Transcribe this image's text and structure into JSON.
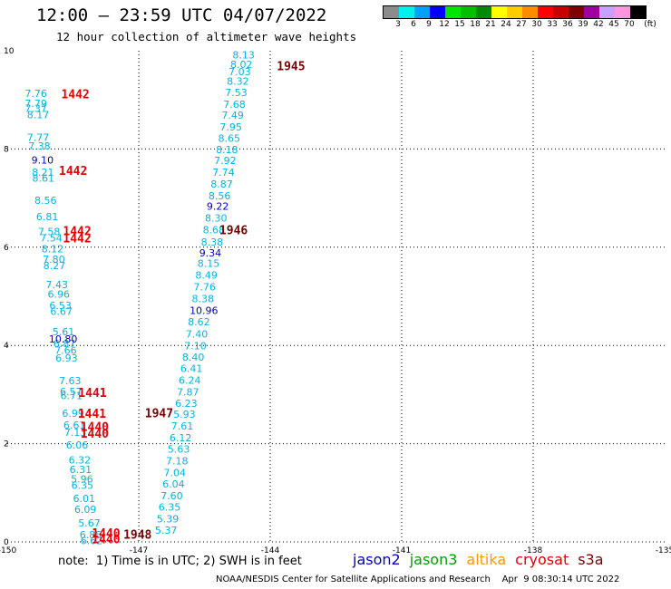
{
  "header": {
    "title": "12:00 – 23:59 UTC 04/07/2022",
    "subtitle": "12 hour collection of altimeter wave heights"
  },
  "legend": {
    "unit": "(ft)",
    "swatches": [
      {
        "color": "#8c8c8c",
        "label": "3"
      },
      {
        "color": "#00f0f0",
        "label": "6"
      },
      {
        "color": "#00a0ff",
        "label": "9"
      },
      {
        "color": "#0000ff",
        "label": "12"
      },
      {
        "color": "#00e600",
        "label": "15"
      },
      {
        "color": "#00c000",
        "label": "18"
      },
      {
        "color": "#008c00",
        "label": "21"
      },
      {
        "color": "#ffff00",
        "label": "24"
      },
      {
        "color": "#ffcc00",
        "label": "27"
      },
      {
        "color": "#ff8c00",
        "label": "30"
      },
      {
        "color": "#ff0000",
        "label": "33"
      },
      {
        "color": "#c80000",
        "label": "36"
      },
      {
        "color": "#800000",
        "label": "39"
      },
      {
        "color": "#a000a0",
        "label": "42"
      },
      {
        "color": "#c8a0ff",
        "label": "45"
      },
      {
        "color": "#ff96dc",
        "label": "70"
      },
      {
        "color": "#000000",
        "label": ""
      }
    ]
  },
  "chart_data": {
    "type": "scatter",
    "title": "12:00 – 23:59 UTC 04/07/2022",
    "subtitle": "12 hour collection of altimeter wave heights",
    "xlim": [
      -150,
      -135
    ],
    "ylim": [
      0,
      10
    ],
    "xticks": [
      -150,
      -147,
      -144,
      -141,
      -138,
      -135
    ],
    "xtick_labels": [
      "-150",
      "-147",
      "-144",
      "-141",
      "-138",
      "-135"
    ],
    "yticks": [
      0,
      2,
      4,
      6,
      8,
      10
    ],
    "ytick_labels": [
      "0",
      "2",
      "4",
      "6",
      "8",
      "10"
    ],
    "grid": true,
    "colors": {
      "cyan": "#00b4e6",
      "blue": "#0000c8",
      "red": "#e60000",
      "maroon": "#780000"
    },
    "series": [
      {
        "color": "cyan",
        "points": [
          [
            -144.86,
            9.92,
            "8.13"
          ],
          [
            -144.91,
            9.72,
            "8.02"
          ],
          [
            -144.95,
            9.58,
            "7.03"
          ],
          [
            -144.99,
            9.38,
            "8.32"
          ],
          [
            -145.03,
            9.15,
            "7.53"
          ],
          [
            -145.07,
            8.91,
            "7.68"
          ],
          [
            -145.11,
            8.69,
            "7.49"
          ],
          [
            -145.15,
            8.45,
            "7.95"
          ],
          [
            -145.19,
            8.22,
            "8.65"
          ],
          [
            -145.24,
            7.99,
            "8.18"
          ],
          [
            -145.28,
            7.77,
            "7.92"
          ],
          [
            -145.32,
            7.53,
            "7.74"
          ],
          [
            -145.36,
            7.29,
            "8.87"
          ],
          [
            -145.41,
            7.05,
            "8.56"
          ],
          [
            -145.49,
            6.6,
            "8.30"
          ],
          [
            -145.54,
            6.36,
            "8.68"
          ],
          [
            -145.58,
            6.11,
            "8.38"
          ],
          [
            -145.66,
            5.67,
            "8.15"
          ],
          [
            -145.71,
            5.43,
            "8.49"
          ],
          [
            -145.75,
            5.19,
            "7.76"
          ],
          [
            -145.79,
            4.95,
            "8.38"
          ],
          [
            -145.88,
            4.48,
            "8.62"
          ],
          [
            -145.93,
            4.23,
            "7.40"
          ],
          [
            -145.96,
            3.99,
            "7.10"
          ],
          [
            -146.01,
            3.76,
            "8.40"
          ],
          [
            -146.05,
            3.53,
            "6.41"
          ],
          [
            -146.09,
            3.29,
            "6.24"
          ],
          [
            -146.13,
            3.05,
            "7.87"
          ],
          [
            -146.17,
            2.82,
            "6.23"
          ],
          [
            -146.21,
            2.6,
            "5.93"
          ],
          [
            -146.26,
            2.36,
            "7.61"
          ],
          [
            -146.3,
            2.12,
            "6.12"
          ],
          [
            -146.34,
            1.89,
            "5.63"
          ],
          [
            -146.38,
            1.65,
            "7.18"
          ],
          [
            -146.43,
            1.41,
            "7.04"
          ],
          [
            -146.46,
            1.18,
            "6.04"
          ],
          [
            -146.5,
            0.94,
            "7.60"
          ],
          [
            -146.55,
            0.71,
            "6.35"
          ],
          [
            -146.59,
            0.47,
            "5.39"
          ],
          [
            -146.63,
            0.24,
            "5.37"
          ],
          [
            -149.6,
            9.13,
            "7.76"
          ],
          [
            -149.6,
            8.93,
            "7.79"
          ],
          [
            -149.6,
            8.83,
            "7.37"
          ],
          [
            -149.55,
            8.7,
            "8.17"
          ],
          [
            -149.55,
            8.24,
            "7.77"
          ],
          [
            -149.52,
            8.06,
            "7.38"
          ],
          [
            -149.44,
            7.53,
            "8.21"
          ],
          [
            -149.43,
            7.41,
            "8.61"
          ],
          [
            -149.38,
            6.96,
            "8.56"
          ],
          [
            -149.34,
            6.62,
            "6.81"
          ],
          [
            -149.3,
            6.32,
            "7.58"
          ],
          [
            -149.25,
            6.19,
            "7.54"
          ],
          [
            -149.22,
            5.97,
            "8.12"
          ],
          [
            -149.19,
            5.76,
            "7.80"
          ],
          [
            -149.18,
            5.63,
            "8.27"
          ],
          [
            -149.12,
            5.24,
            "7.43"
          ],
          [
            -149.08,
            5.05,
            "6.96"
          ],
          [
            -149.04,
            4.82,
            "6.53"
          ],
          [
            -149.02,
            4.7,
            "6.67"
          ],
          [
            -148.97,
            4.28,
            "5.61"
          ],
          [
            -148.95,
            4.04,
            "6.87"
          ],
          [
            -148.92,
            3.9,
            "7.66"
          ],
          [
            -148.9,
            3.75,
            "6.93"
          ],
          [
            -148.82,
            3.28,
            "7.63"
          ],
          [
            -148.8,
            3.06,
            "6.57"
          ],
          [
            -148.79,
            2.98,
            "6.71"
          ],
          [
            -148.75,
            2.62,
            "6.99"
          ],
          [
            -148.72,
            2.38,
            "6.61"
          ],
          [
            -148.7,
            2.23,
            "7.13"
          ],
          [
            -148.66,
            1.97,
            "6.06"
          ],
          [
            -148.6,
            1.67,
            "6.32"
          ],
          [
            -148.58,
            1.48,
            "6.31"
          ],
          [
            -148.55,
            1.28,
            "5.96"
          ],
          [
            -148.54,
            1.15,
            "6.35"
          ],
          [
            -148.5,
            0.89,
            "6.01"
          ],
          [
            -148.47,
            0.66,
            "6.09"
          ],
          [
            -148.38,
            0.39,
            "5.67"
          ],
          [
            -148.35,
            0.15,
            "6.85"
          ],
          [
            -148.33,
            0.03,
            "6.62"
          ]
        ]
      },
      {
        "color": "blue",
        "points": [
          [
            -145.45,
            6.84,
            "9.22"
          ],
          [
            -145.62,
            5.89,
            "9.34"
          ],
          [
            -145.84,
            4.71,
            "10.96"
          ],
          [
            -149.45,
            7.78,
            "9.10"
          ],
          [
            -149.05,
            4.13,
            "10.80"
          ]
        ]
      }
    ],
    "annotations": [
      {
        "x": -143.85,
        "y": 9.7,
        "text": "1945",
        "color": "maroon"
      },
      {
        "x": -145.16,
        "y": 6.36,
        "text": "1946",
        "color": "maroon"
      },
      {
        "x": -146.86,
        "y": 2.63,
        "text": "1947",
        "color": "maroon"
      },
      {
        "x": -147.35,
        "y": 0.16,
        "text": "1948",
        "color": "maroon"
      },
      {
        "x": -148.77,
        "y": 9.12,
        "text": "1442",
        "color": "red"
      },
      {
        "x": -148.82,
        "y": 7.56,
        "text": "1442",
        "color": "red"
      },
      {
        "x": -148.73,
        "y": 6.34,
        "text": "1442",
        "color": "red"
      },
      {
        "x": -148.73,
        "y": 6.19,
        "text": "1442",
        "color": "red"
      },
      {
        "x": -148.38,
        "y": 3.04,
        "text": "1441",
        "color": "red"
      },
      {
        "x": -148.39,
        "y": 2.62,
        "text": "1441",
        "color": "red"
      },
      {
        "x": -148.33,
        "y": 2.35,
        "text": "1440",
        "color": "red"
      },
      {
        "x": -148.33,
        "y": 2.21,
        "text": "1440",
        "color": "red"
      },
      {
        "x": -148.07,
        "y": 0.18,
        "text": "1440",
        "color": "red"
      },
      {
        "x": -148.07,
        "y": 0.06,
        "text": "1440",
        "color": "red"
      }
    ]
  },
  "footer": {
    "note": "note:  1) Time is in UTC; 2) SWH is in feet",
    "satellites": [
      {
        "name": "jason2",
        "color": "#0000c8"
      },
      {
        "name": "jason3",
        "color": "#00a000"
      },
      {
        "name": "altika",
        "color": "#ff9600"
      },
      {
        "name": "cryosat",
        "color": "#e60000"
      },
      {
        "name": "s3a",
        "color": "#780000"
      }
    ],
    "credit": "NOAA/NESDIS Center for Satellite Applications and Research    Apr  9 08:30:14 UTC 2022"
  }
}
